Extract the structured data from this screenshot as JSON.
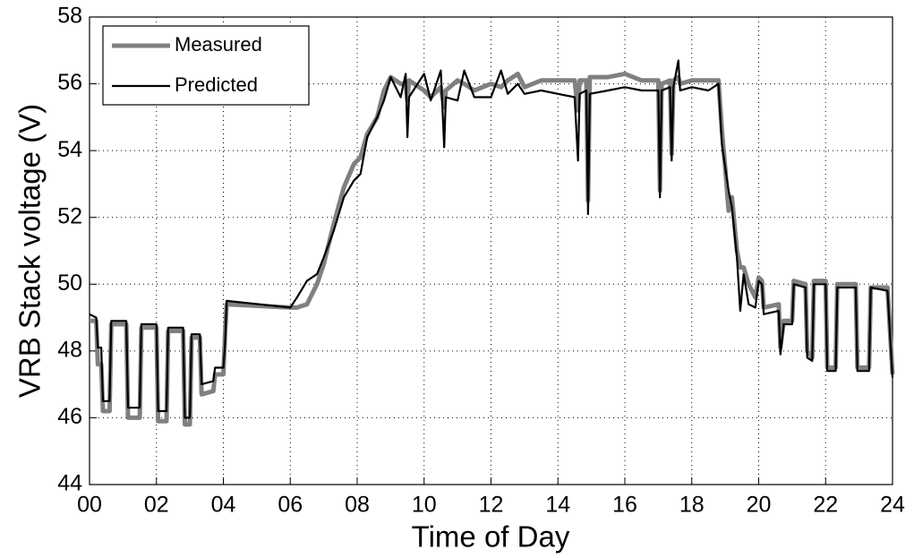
{
  "chart_data": {
    "type": "line",
    "x_label": "Time of Day",
    "y_label": "VRB Stack voltage (V)",
    "x": [
      0.0,
      0.2,
      0.25,
      0.35,
      0.4,
      0.6,
      0.65,
      1.1,
      1.15,
      1.5,
      1.55,
      2.0,
      2.05,
      2.3,
      2.35,
      2.8,
      2.85,
      3.0,
      3.05,
      3.3,
      3.35,
      3.7,
      3.75,
      4.0,
      4.05,
      4.1,
      6.0,
      6.2,
      6.5,
      6.8,
      7.0,
      7.3,
      7.6,
      7.9,
      8.1,
      8.3,
      8.6,
      8.8,
      9.0,
      9.3,
      9.45,
      9.5,
      9.55,
      10.0,
      10.2,
      10.5,
      10.6,
      10.65,
      11.0,
      11.2,
      11.5,
      12.0,
      12.3,
      12.5,
      12.8,
      13.0,
      13.5,
      14.0,
      14.5,
      14.6,
      14.65,
      14.85,
      14.9,
      14.95,
      15.5,
      16.0,
      16.5,
      17.0,
      17.05,
      17.1,
      17.35,
      17.4,
      17.45,
      17.6,
      17.65,
      18.0,
      18.5,
      18.8,
      18.9,
      19.0,
      19.1,
      19.2,
      19.35,
      19.45,
      19.55,
      19.7,
      19.9,
      20.0,
      20.1,
      20.15,
      20.6,
      20.65,
      20.75,
      21.0,
      21.05,
      21.4,
      21.45,
      21.6,
      21.65,
      22.0,
      22.05,
      22.3,
      22.35,
      22.9,
      22.95,
      23.3,
      23.35,
      23.85,
      24.0
    ],
    "series": [
      {
        "name": "Measured",
        "color": "#808080",
        "values": [
          48.9,
          48.9,
          47.6,
          47.6,
          46.2,
          46.2,
          48.8,
          48.8,
          46.0,
          46.0,
          48.7,
          48.7,
          45.9,
          45.9,
          48.6,
          48.6,
          45.8,
          45.8,
          48.4,
          48.4,
          46.7,
          46.8,
          47.3,
          47.3,
          48.5,
          49.4,
          49.3,
          49.3,
          49.4,
          50.0,
          50.6,
          51.8,
          52.9,
          53.6,
          53.8,
          54.5,
          55.0,
          55.8,
          56.2,
          56.0,
          56.0,
          55.5,
          56.1,
          55.8,
          55.6,
          55.9,
          55.3,
          55.8,
          56.1,
          56.0,
          55.8,
          56.0,
          55.9,
          56.1,
          56.3,
          55.9,
          56.1,
          56.1,
          56.1,
          55.2,
          56.1,
          56.1,
          52.5,
          56.2,
          56.2,
          56.3,
          56.1,
          56.1,
          52.8,
          56.0,
          56.1,
          53.9,
          56.1,
          56.2,
          56.0,
          56.1,
          56.1,
          56.1,
          54.6,
          53.5,
          52.2,
          52.6,
          51.0,
          50.5,
          50.5,
          50.0,
          49.6,
          50.2,
          50.1,
          49.3,
          49.4,
          48.1,
          48.9,
          48.9,
          50.1,
          50.0,
          48.0,
          47.8,
          50.1,
          50.1,
          47.5,
          47.5,
          50.0,
          50.0,
          47.5,
          47.5,
          49.9,
          49.9,
          47.3
        ]
      },
      {
        "name": "Predicted",
        "color": "#000000",
        "values": [
          49.1,
          49.0,
          48.1,
          48.1,
          46.5,
          46.5,
          48.9,
          48.9,
          46.3,
          46.3,
          48.8,
          48.8,
          46.2,
          46.2,
          48.7,
          48.7,
          46.0,
          46.0,
          48.5,
          48.5,
          47.0,
          47.1,
          47.5,
          47.5,
          48.2,
          49.5,
          49.3,
          49.6,
          50.1,
          50.3,
          50.8,
          51.6,
          52.6,
          53.1,
          53.3,
          54.4,
          55.0,
          55.5,
          56.2,
          55.6,
          56.3,
          54.4,
          55.6,
          56.3,
          55.5,
          56.4,
          54.1,
          55.6,
          55.5,
          56.4,
          55.6,
          55.6,
          56.4,
          55.7,
          56.0,
          55.7,
          55.8,
          55.7,
          55.6,
          53.7,
          55.7,
          55.8,
          52.1,
          55.7,
          55.8,
          55.9,
          55.8,
          55.8,
          52.6,
          55.8,
          55.9,
          53.7,
          55.9,
          56.7,
          55.8,
          55.9,
          55.8,
          56.0,
          54.2,
          53.5,
          52.8,
          52.3,
          50.8,
          49.2,
          50.3,
          49.4,
          49.3,
          50.1,
          50.0,
          49.1,
          49.2,
          47.9,
          48.8,
          48.8,
          50.0,
          49.9,
          47.8,
          47.7,
          50.0,
          50.0,
          47.4,
          47.4,
          49.9,
          49.9,
          47.4,
          47.4,
          49.9,
          49.8,
          47.2
        ]
      }
    ],
    "xlim": [
      0,
      24
    ],
    "xticks": [
      {
        "value": 0,
        "label": "00"
      },
      {
        "value": 2,
        "label": "02"
      },
      {
        "value": 4,
        "label": "04"
      },
      {
        "value": 6,
        "label": "06"
      },
      {
        "value": 8,
        "label": "08"
      },
      10,
      12,
      14,
      16,
      18,
      20,
      22,
      24
    ],
    "ylim": [
      44,
      58
    ],
    "yticks": [
      44,
      46,
      48,
      50,
      52,
      54,
      56,
      58
    ],
    "grid": true,
    "legend": "upper left"
  }
}
